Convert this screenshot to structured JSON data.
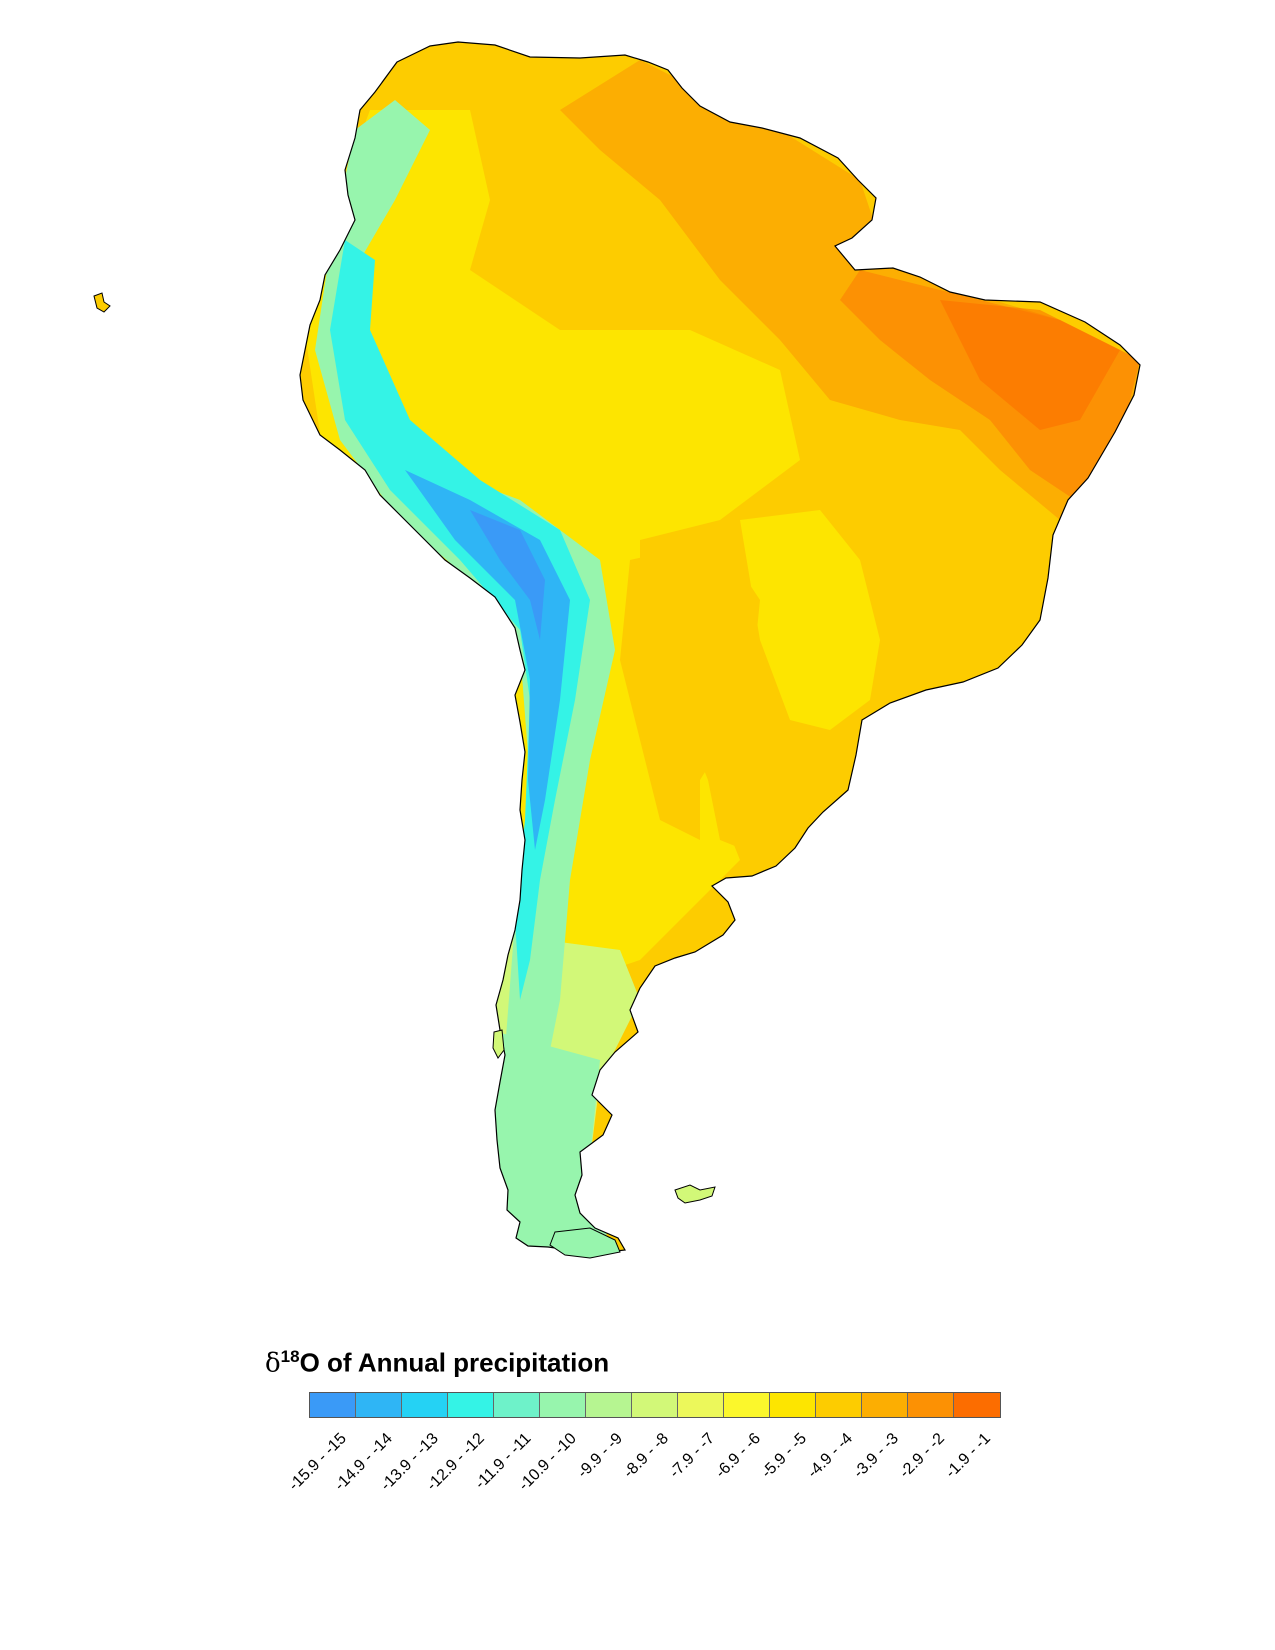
{
  "map": {
    "region": "South America",
    "variable": "δ18O of Annual precipitation"
  },
  "legend": {
    "title_symbol": "δ",
    "title_superscript": "18",
    "title_text": "O of Annual precipitation",
    "classes": [
      {
        "label": "-15.9 - -15",
        "color": "#3a9af7"
      },
      {
        "label": "-14.9 - -14",
        "color": "#2fb5f5"
      },
      {
        "label": "-13.9 - -13",
        "color": "#25d2f4"
      },
      {
        "label": "-12.9 - -12",
        "color": "#34f3e6"
      },
      {
        "label": "-11.9 - -11",
        "color": "#6ef2c9"
      },
      {
        "label": "-10.9 - -10",
        "color": "#97f5ad"
      },
      {
        "label": "-9.9 - -9",
        "color": "#b6f591"
      },
      {
        "label": "-8.9 - -8",
        "color": "#d2f878"
      },
      {
        "label": "-7.9 - -7",
        "color": "#ecf85b"
      },
      {
        "label": "-6.9 - -6",
        "color": "#fbf72c"
      },
      {
        "label": "-5.9 - -5",
        "color": "#fde500"
      },
      {
        "label": "-4.9 - -4",
        "color": "#fdcc00"
      },
      {
        "label": "-3.9 - -3",
        "color": "#fcae02"
      },
      {
        "label": "-2.9 - -2",
        "color": "#fc9104"
      },
      {
        "label": "-1.9 - -1",
        "color": "#fc6d00"
      }
    ]
  }
}
